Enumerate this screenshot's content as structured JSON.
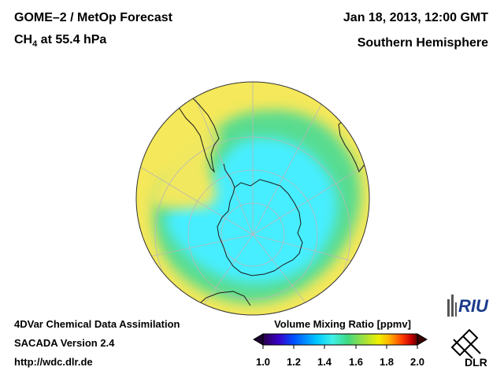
{
  "header": {
    "title_line1": "GOME–2 / MetOp Forecast",
    "species_main": "CH",
    "species_sub": "4",
    "species_rest": " at 55.4 hPa",
    "date": "Jan 18, 2013, 12:00 GMT",
    "hemisphere": "Southern Hemisphere"
  },
  "footer": {
    "line1": "4DVar Chemical Data Assimilation",
    "line2": "SACADA Version 2.4",
    "line3": "http://wdc.dlr.de"
  },
  "colorbar": {
    "title": "Volume Mixing Ratio [ppmv]",
    "ticks": [
      "1.0",
      "1.2",
      "1.4",
      "1.6",
      "1.8",
      "2.0"
    ],
    "min": 1.0,
    "max": 2.0,
    "colors": [
      "#2a0048",
      "#3a00c8",
      "#0050ff",
      "#00c8ff",
      "#40f0e8",
      "#40d880",
      "#9ee040",
      "#f0f000",
      "#ffb000",
      "#ff4000",
      "#c80000",
      "#580000"
    ]
  },
  "map": {
    "background_value_color": "#f5e85a",
    "polar_value_color": "#40f0ff"
  },
  "logos": {
    "riu": "RIU",
    "dlr": "DLR"
  }
}
